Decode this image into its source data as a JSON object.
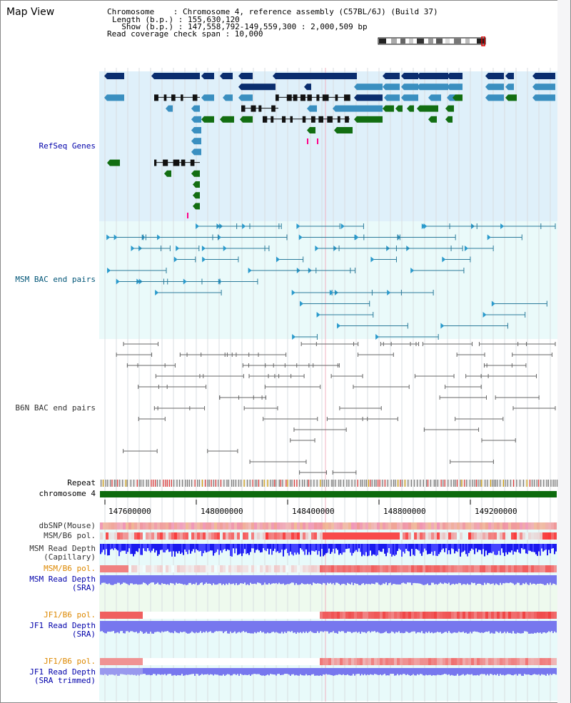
{
  "window": {
    "title": "Map View"
  },
  "header": {
    "chromosome_line": "Chromosome    : Chromosome 4, reference assembly (C57BL/6J) (Build 37)",
    "length_line": "Length (b.p.) : 155,630,120",
    "show_line": "  Show (b.p.) : 147,558,792-149,559,300 : 2,000,509 bp",
    "coverage_line": "Read coverage check span : 10,000"
  },
  "tracks": {
    "refseq": {
      "label": "RefSeq Genes",
      "color": "#0000aa"
    },
    "msm_bac": {
      "label": "MSM BAC end pairs",
      "color": "#005577"
    },
    "b6n_bac": {
      "label": "B6N BAC end pairs",
      "color": "#333333"
    },
    "repeat": {
      "label": "Repeat"
    },
    "chromosome": {
      "label": "chromosome 4",
      "color": "#006600"
    },
    "dbsnp": {
      "label": "dbSNP(Mouse)"
    },
    "msm_b6_pol": {
      "label": "MSM/B6 pol."
    },
    "msm_read_depth_cap": {
      "label_line1": "MSM Read Depth",
      "label_line2": "(Capillary)"
    },
    "msm_b6_pol_sra": {
      "label": "MSM/B6 pol.",
      "color": "#dd8800"
    },
    "msm_read_depth_sra": {
      "label_line1": "MSM Read Depth",
      "label_line2": "(SRA)",
      "color": "#0000aa"
    },
    "jf1_b6_pol": {
      "label": "JF1/B6 pol.",
      "color": "#dd8800"
    },
    "jf1_read_depth_sra": {
      "label_line1": "JF1 Read Depth",
      "label_line2": "(SRA)",
      "color": "#0000aa"
    },
    "jf1_b6_pol_2": {
      "label": "JF1/B6 pol.",
      "color": "#dd8800"
    },
    "jf1_read_depth_trim": {
      "label_line1": "JF1 Read Depth",
      "label_line2": "(SRA trimmed)",
      "color": "#0000aa"
    }
  },
  "axis": {
    "ticks": [
      "147600000",
      "148000000",
      "148400000",
      "148800000",
      "149200000"
    ]
  },
  "colors": {
    "refseq_bg": "#dff0fa",
    "bac_bg": "#e8fafa",
    "gene_dark": "#0a2d6e",
    "gene_light": "#3a8fc0",
    "gene_green": "#126e12",
    "depth_blue": "#2222dd",
    "depth_sra": "#7777ee",
    "pol_red": "#e83030"
  }
}
